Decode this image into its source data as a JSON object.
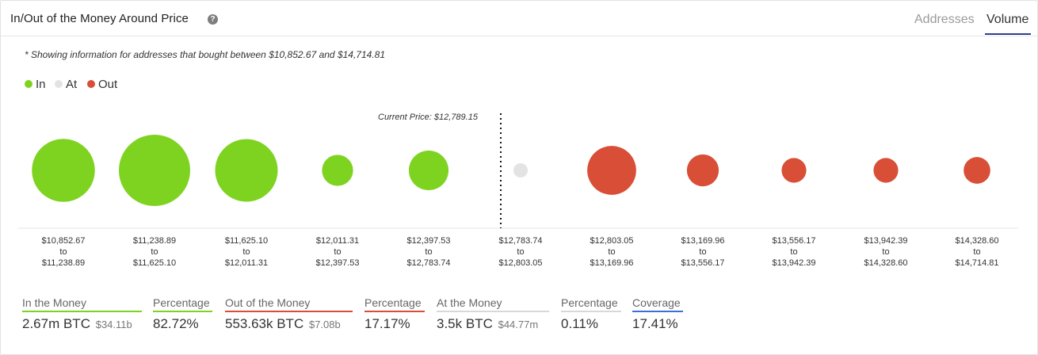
{
  "header": {
    "title": "In/Out of the Money Around Price",
    "tabs": [
      "Addresses",
      "Volume"
    ],
    "active_tab": "Volume"
  },
  "note": "* Showing information for addresses that bought between $10,852.67 and $14,714.81",
  "legend": [
    {
      "label": "In",
      "color": "#7ed321"
    },
    {
      "label": "At",
      "color": "#e3e3e3"
    },
    {
      "label": "Out",
      "color": "#d94e36"
    }
  ],
  "current_price_label": "Current Price: $12,789.15",
  "chart_data": {
    "type": "bubble",
    "title": "In/Out of the Money Around Price",
    "current_price": 12789.15,
    "ranges": [
      {
        "from": "$10,852.67",
        "to": "$11,238.89",
        "status": "in",
        "relative_size": 0.78
      },
      {
        "from": "$11,238.89",
        "to": "$11,625.10",
        "status": "in",
        "relative_size": 1.0
      },
      {
        "from": "$11,625.10",
        "to": "$12,011.31",
        "status": "in",
        "relative_size": 0.77
      },
      {
        "from": "$12,011.31",
        "to": "$12,397.53",
        "status": "in",
        "relative_size": 0.19
      },
      {
        "from": "$12,397.53",
        "to": "$12,783.74",
        "status": "in",
        "relative_size": 0.31
      },
      {
        "from": "$12,783.74",
        "to": "$12,803.05",
        "status": "at",
        "relative_size": 0.04
      },
      {
        "from": "$12,803.05",
        "to": "$13,169.96",
        "status": "out",
        "relative_size": 0.47
      },
      {
        "from": "$13,169.96",
        "to": "$13,556.17",
        "status": "out",
        "relative_size": 0.2
      },
      {
        "from": "$13,556.17",
        "to": "$13,942.39",
        "status": "out",
        "relative_size": 0.12
      },
      {
        "from": "$13,942.39",
        "to": "$14,328.60",
        "status": "out",
        "relative_size": 0.12
      },
      {
        "from": "$14,328.60",
        "to": "$14,714.81",
        "status": "out",
        "relative_size": 0.14
      }
    ]
  },
  "stats": [
    {
      "label": "In the Money",
      "value": "2.67m BTC",
      "sub": "$34.11b",
      "color": "#7ed321"
    },
    {
      "label": "Percentage",
      "value": "82.72%",
      "sub": "",
      "color": "#7ed321"
    },
    {
      "label": "Out of the Money",
      "value": "553.63k BTC",
      "sub": "$7.08b",
      "color": "#d94e36"
    },
    {
      "label": "Percentage",
      "value": "17.17%",
      "sub": "",
      "color": "#d94e36"
    },
    {
      "label": "At the Money",
      "value": "3.5k BTC",
      "sub": "$44.77m",
      "color": "#d8d8d8"
    },
    {
      "label": "Percentage",
      "value": "0.11%",
      "sub": "",
      "color": "#d8d8d8"
    },
    {
      "label": "Coverage",
      "value": "17.41%",
      "sub": "",
      "color": "#3a6fd8"
    }
  ]
}
